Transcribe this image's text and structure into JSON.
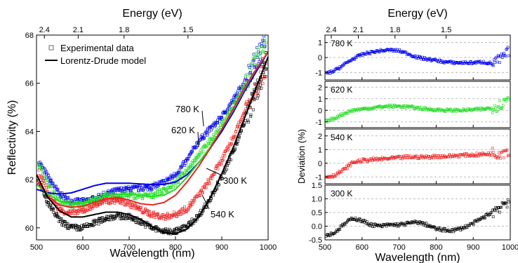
{
  "chart_data": [
    {
      "type": "scatter",
      "xlabel": "Wavelength (nm)",
      "ylabel": "Reflectivity (%)",
      "top_xlabel": "Energy (eV)",
      "xlim": [
        500,
        1000
      ],
      "ylim": [
        59.5,
        68
      ],
      "xticks": [
        "500",
        "600",
        "700",
        "800",
        "900",
        "1000"
      ],
      "yticks": [
        "60",
        "62",
        "64",
        "66",
        "68"
      ],
      "top_ticks": [
        {
          "label": "2.4",
          "wavelength": 517
        },
        {
          "label": "2.1",
          "wavelength": 590
        },
        {
          "label": "1.8",
          "wavelength": 689
        },
        {
          "label": "1.5",
          "wavelength": 827
        }
      ],
      "legend": {
        "position": "top-left",
        "entries": [
          {
            "label": "Experimental data",
            "kind": "square-marker"
          },
          {
            "label": "Lorentz-Drude model",
            "kind": "line"
          }
        ]
      },
      "annotations": [
        {
          "text": "780 K",
          "x": 858,
          "y": 63.9
        },
        {
          "text": "620 K",
          "x": 836,
          "y": 63.2
        },
        {
          "text": "300 K",
          "x": 925,
          "y": 60.75
        },
        {
          "text": "540 K",
          "x": 908,
          "y": 60.05
        }
      ],
      "series": [
        {
          "temperature": "780 K",
          "color": "#0000ee",
          "data_x": [
            500,
            525,
            550,
            575,
            600,
            625,
            650,
            675,
            700,
            725,
            750,
            775,
            800,
            825,
            850,
            875,
            900,
            925,
            950,
            975,
            1000
          ],
          "data_y": [
            62.9,
            62.1,
            61.4,
            61.1,
            61.1,
            61.2,
            61.4,
            61.55,
            61.6,
            61.65,
            61.7,
            61.9,
            62.2,
            62.8,
            63.6,
            64.1,
            64.6,
            65.3,
            66.1,
            67.0,
            67.9
          ],
          "model_x": [
            500,
            525,
            550,
            575,
            600,
            625,
            650,
            675,
            700,
            725,
            750,
            775,
            800,
            825,
            850,
            875,
            900,
            925,
            950,
            975,
            1000
          ],
          "model_y": [
            61.6,
            61.45,
            61.4,
            61.45,
            61.6,
            61.75,
            61.85,
            61.85,
            61.85,
            61.82,
            61.8,
            61.8,
            61.9,
            62.2,
            62.7,
            63.3,
            64.0,
            64.8,
            65.7,
            66.5,
            67.3
          ]
        },
        {
          "temperature": "620 K",
          "color": "#22dd22",
          "data_x": [
            500,
            525,
            550,
            575,
            600,
            625,
            650,
            675,
            700,
            725,
            750,
            775,
            800,
            825,
            850,
            875,
            900,
            925,
            950,
            975,
            1000
          ],
          "data_y": [
            62.9,
            61.8,
            61.1,
            60.95,
            61.0,
            61.15,
            61.3,
            61.35,
            61.35,
            61.3,
            61.35,
            61.55,
            61.85,
            62.4,
            63.05,
            63.6,
            64.25,
            65.05,
            65.95,
            66.9,
            67.6
          ],
          "model_x": [
            500,
            525,
            550,
            575,
            600,
            625,
            650,
            675,
            700,
            725,
            750,
            775,
            800,
            825,
            850,
            875,
            900,
            925,
            950,
            975,
            1000
          ],
          "model_y": [
            61.8,
            61.4,
            61.1,
            61.0,
            61.05,
            61.15,
            61.3,
            61.4,
            61.4,
            61.35,
            61.3,
            61.35,
            61.6,
            62.1,
            62.7,
            63.35,
            64.1,
            64.9,
            65.8,
            66.6,
            67.3
          ]
        },
        {
          "temperature": "540 K",
          "color": "#ee2222",
          "data_x": [
            500,
            525,
            550,
            575,
            600,
            625,
            650,
            675,
            700,
            725,
            750,
            775,
            800,
            825,
            850,
            875,
            900,
            925,
            950,
            975,
            1000
          ],
          "data_y": [
            62.5,
            61.4,
            60.75,
            60.6,
            60.7,
            60.95,
            61.1,
            61.15,
            61.0,
            60.75,
            60.55,
            60.45,
            60.55,
            60.8,
            61.35,
            62.0,
            62.8,
            63.75,
            64.85,
            65.9,
            66.9
          ],
          "model_x": [
            500,
            525,
            550,
            575,
            600,
            625,
            650,
            675,
            700,
            725,
            750,
            775,
            800,
            825,
            850,
            875,
            900,
            925,
            950,
            975,
            1000
          ],
          "model_y": [
            62.0,
            61.3,
            60.95,
            60.85,
            60.9,
            61.05,
            61.2,
            61.25,
            61.15,
            61.0,
            60.95,
            61.05,
            61.35,
            61.9,
            62.55,
            63.3,
            64.1,
            64.95,
            65.85,
            66.6,
            67.3
          ]
        },
        {
          "temperature": "300 K",
          "color": "#000000",
          "data_x": [
            500,
            525,
            550,
            575,
            600,
            625,
            650,
            675,
            700,
            725,
            750,
            775,
            800,
            825,
            850,
            875,
            900,
            925,
            950,
            975,
            1000
          ],
          "data_y": [
            62.1,
            61.0,
            60.3,
            60.0,
            60.0,
            60.2,
            60.4,
            60.5,
            60.45,
            60.25,
            60.0,
            59.85,
            59.85,
            60.05,
            60.5,
            61.2,
            62.1,
            63.2,
            64.4,
            65.7,
            66.9
          ],
          "model_x": [
            500,
            525,
            550,
            575,
            600,
            625,
            650,
            675,
            700,
            725,
            750,
            775,
            800,
            825,
            850,
            875,
            900,
            925,
            950,
            975,
            1000
          ],
          "model_y": [
            62.2,
            61.25,
            60.7,
            60.45,
            60.45,
            60.55,
            60.65,
            60.65,
            60.55,
            60.35,
            60.05,
            59.8,
            59.75,
            59.95,
            60.45,
            61.25,
            62.25,
            63.35,
            64.6,
            65.85,
            67.1
          ]
        }
      ]
    },
    {
      "type": "scatter",
      "ylabel": "Deviation (%)",
      "xlabel": "Wavelength (nm)",
      "top_xlabel": "Energy (eV)",
      "xlim": [
        500,
        1000
      ],
      "xticks": [
        "500",
        "600",
        "700",
        "800",
        "900",
        "1000"
      ],
      "top_ticks": [
        {
          "label": "2.4",
          "wavelength": 517
        },
        {
          "label": "2.1",
          "wavelength": 590
        },
        {
          "label": "1.8",
          "wavelength": 689
        },
        {
          "label": "1.5",
          "wavelength": 827
        }
      ],
      "grid": "dashed horizontal",
      "panels": [
        {
          "label": "780 K",
          "color": "#0000ee",
          "ylim": [
            -1.5,
            1.5
          ],
          "yticks": [
            "-1",
            "0",
            "1"
          ],
          "gridlines": [
            -1,
            0,
            1
          ],
          "x": [
            500,
            525,
            550,
            575,
            600,
            625,
            650,
            675,
            700,
            725,
            750,
            775,
            800,
            825,
            850,
            875,
            900,
            925,
            950,
            975,
            1000
          ],
          "y": [
            -1.1,
            -0.9,
            -0.5,
            -0.1,
            0.2,
            0.35,
            0.45,
            0.5,
            0.45,
            0.25,
            0.0,
            -0.1,
            -0.2,
            -0.3,
            -0.35,
            -0.35,
            -0.35,
            -0.3,
            -0.4,
            -0.1,
            0.5
          ]
        },
        {
          "label": "620 K",
          "color": "#22dd22",
          "ylim": [
            -1.5,
            2.5
          ],
          "yticks": [
            "-1",
            "0",
            "1",
            "2"
          ],
          "gridlines": [
            -1,
            0,
            1,
            2
          ],
          "x": [
            500,
            525,
            550,
            575,
            600,
            625,
            650,
            675,
            700,
            725,
            750,
            775,
            800,
            825,
            850,
            875,
            900,
            925,
            950,
            975,
            1000
          ],
          "y": [
            -1.0,
            -0.7,
            -0.3,
            0.0,
            0.1,
            0.2,
            0.3,
            0.35,
            0.35,
            0.3,
            0.2,
            0.1,
            0.05,
            0.0,
            0.0,
            0.0,
            0.05,
            0.1,
            0.2,
            0.5,
            1.2
          ]
        },
        {
          "label": "540 K",
          "color": "#ee2222",
          "ylim": [
            -1.5,
            2.5
          ],
          "yticks": [
            "-1",
            "0",
            "1",
            "2"
          ],
          "gridlines": [
            -1,
            0,
            1,
            2
          ],
          "x": [
            500,
            525,
            550,
            575,
            600,
            625,
            650,
            675,
            700,
            725,
            750,
            775,
            800,
            825,
            850,
            875,
            900,
            925,
            950,
            975,
            1000
          ],
          "y": [
            -1.0,
            -0.9,
            -0.5,
            0.05,
            0.2,
            0.25,
            0.3,
            0.35,
            0.4,
            0.45,
            0.45,
            0.45,
            0.5,
            0.5,
            0.55,
            0.6,
            0.6,
            0.65,
            0.7,
            0.8,
            1.0
          ]
        },
        {
          "label": "300 K",
          "color": "#000000",
          "ylim": [
            -0.5,
            1.5
          ],
          "yticks": [
            "-0.5",
            "0.0",
            "0.5",
            "1.0",
            "1.5"
          ],
          "gridlines": [
            0.0,
            0.5,
            1.0
          ],
          "x": [
            500,
            525,
            550,
            575,
            600,
            625,
            650,
            675,
            700,
            725,
            750,
            775,
            800,
            825,
            850,
            875,
            900,
            925,
            950,
            975,
            1000
          ],
          "y": [
            -0.35,
            -0.25,
            0.05,
            0.3,
            0.2,
            0.05,
            0.0,
            0.05,
            0.05,
            0.1,
            0.15,
            0.05,
            -0.1,
            -0.15,
            -0.15,
            -0.05,
            0.1,
            0.3,
            0.5,
            0.75,
            1.0
          ]
        }
      ]
    }
  ]
}
